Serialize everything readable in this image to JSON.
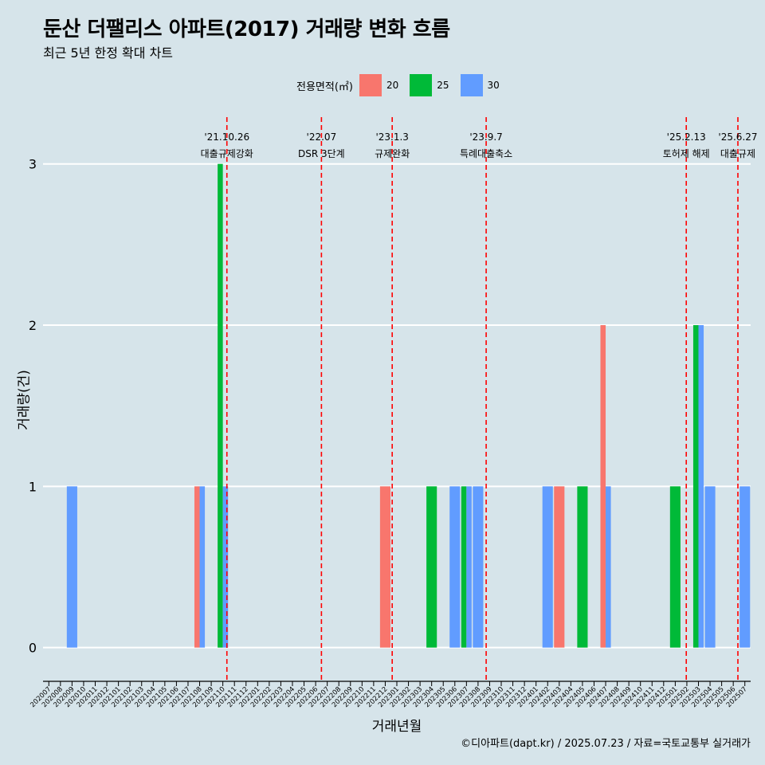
{
  "header": {
    "title": "둔산 더팰리스 아파트(2017) 거래량 변화 흐름",
    "subtitle": "최근 5년 한정 확대 차트"
  },
  "legend": {
    "title": "전용면적(㎡)",
    "position": "top-center"
  },
  "caption": "©디아파트(dapt.kr) / 2025.07.23 / 자료=국토교통부 실거래가",
  "colors": {
    "background": "#d6e4ea",
    "grid": "#ffffff",
    "event_line": "#ff0000",
    "s20": "#f8766d",
    "s25": "#00ba38",
    "s30": "#619cff"
  },
  "chart_data": {
    "type": "bar",
    "title": "둔산 더팰리스 아파트(2017) 거래량 변화 흐름",
    "subtitle": "최근 5년 한정 확대 차트",
    "xlabel": "거래년월",
    "ylabel": "거래량(건)",
    "ylim": [
      -0.15,
      3.3
    ],
    "yticks": [
      0,
      1,
      2,
      3
    ],
    "grid": true,
    "legend_position": "top",
    "categories": [
      "202007",
      "202008",
      "202009",
      "202010",
      "202011",
      "202012",
      "202101",
      "202102",
      "202103",
      "202104",
      "202105",
      "202106",
      "202107",
      "202108",
      "202109",
      "202110",
      "202111",
      "202112",
      "202201",
      "202202",
      "202203",
      "202204",
      "202205",
      "202206",
      "202207",
      "202208",
      "202209",
      "202210",
      "202211",
      "202212",
      "202301",
      "202302",
      "202303",
      "202304",
      "202305",
      "202306",
      "202307",
      "202308",
      "202309",
      "202310",
      "202311",
      "202312",
      "202401",
      "202402",
      "202403",
      "202404",
      "202405",
      "202406",
      "202407",
      "202408",
      "202409",
      "202410",
      "202411",
      "202412",
      "202501",
      "202502",
      "202503",
      "202504",
      "202505",
      "202506",
      "202507"
    ],
    "series": [
      {
        "name": "20",
        "color": "#f8766d",
        "points": [
          [
            "202108",
            1
          ],
          [
            "202212",
            1
          ],
          [
            "202403",
            1
          ],
          [
            "202407",
            2
          ]
        ]
      },
      {
        "name": "25",
        "color": "#00ba38",
        "points": [
          [
            "202110",
            3
          ],
          [
            "202304",
            1
          ],
          [
            "202307",
            1
          ],
          [
            "202405",
            1
          ],
          [
            "202501",
            1
          ],
          [
            "202503",
            2
          ]
        ]
      },
      {
        "name": "30",
        "color": "#619cff",
        "points": [
          [
            "202009",
            1
          ],
          [
            "202108",
            1
          ],
          [
            "202110",
            1
          ],
          [
            "202306",
            1
          ],
          [
            "202307",
            1
          ],
          [
            "202308",
            1
          ],
          [
            "202402",
            1
          ],
          [
            "202407",
            1
          ],
          [
            "202503",
            2
          ],
          [
            "202504",
            1
          ],
          [
            "202507",
            1
          ]
        ]
      }
    ],
    "events": [
      {
        "x": "202110",
        "offset": 0.85,
        "date": "'21.10.26",
        "label": "대출규제강화"
      },
      {
        "x": "202207",
        "offset": 0.0,
        "date": "'22.07",
        "label": "DSR 3단계"
      },
      {
        "x": "202301",
        "offset": 0.1,
        "date": "'23.1.3",
        "label": "규제완화"
      },
      {
        "x": "202309",
        "offset": 0.2,
        "date": "'23.9.7",
        "label": "특례대출축소"
      },
      {
        "x": "202502",
        "offset": 0.45,
        "date": "'25.2.13",
        "label": "토허제 해제"
      },
      {
        "x": "202506",
        "offset": 0.9,
        "date": "'25.6.27",
        "label": "대출규제"
      }
    ]
  }
}
